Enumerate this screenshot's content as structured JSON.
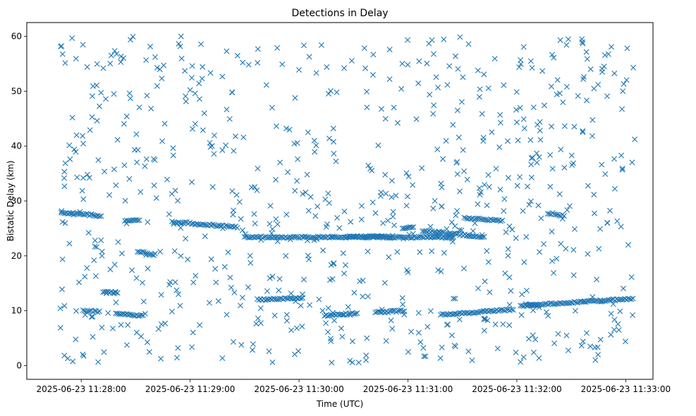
{
  "chart_data": {
    "type": "scatter",
    "title": "Detections in Delay",
    "xlabel": "Time (UTC)",
    "ylabel": "Bistatic Delay (km)",
    "marker": "x",
    "color": "#1f77b4",
    "xlim_seconds_from_11_28_00": [
      -30,
      315
    ],
    "ylim": [
      -2.5,
      62.5
    ],
    "x_ticks": [
      {
        "seconds": 0,
        "label": "2025-06-23 11:28:00"
      },
      {
        "seconds": 60,
        "label": "2025-06-23 11:29:00"
      },
      {
        "seconds": 120,
        "label": "2025-06-23 11:30:00"
      },
      {
        "seconds": 180,
        "label": "2025-06-23 11:31:00"
      },
      {
        "seconds": 240,
        "label": "2025-06-23 11:32:00"
      },
      {
        "seconds": 300,
        "label": "2025-06-23 11:33:00"
      }
    ],
    "y_ticks": [
      0,
      10,
      20,
      30,
      40,
      50,
      60
    ],
    "tracks": [
      {
        "t_start": -11,
        "t_end": 11,
        "y_start": 27.9,
        "y_end": 27.3
      },
      {
        "t_start": 50,
        "t_end": 86,
        "y_start": 26.2,
        "y_end": 25.2
      },
      {
        "t_start": 146,
        "t_end": 170,
        "y_start": 23.5,
        "y_end": 23.5
      },
      {
        "t_start": 90,
        "t_end": 170,
        "y_start": 23.4,
        "y_end": 23.4
      },
      {
        "t_start": 170,
        "t_end": 205,
        "y_start": 23.4,
        "y_end": 23.4
      },
      {
        "t_start": 177,
        "t_end": 183,
        "y_start": 25.1,
        "y_end": 25.1
      },
      {
        "t_start": 188,
        "t_end": 222,
        "y_start": 24.6,
        "y_end": 23.4
      },
      {
        "t_start": 211,
        "t_end": 232,
        "y_start": 26.9,
        "y_end": 26.4
      },
      {
        "t_start": 134,
        "t_end": 152,
        "y_start": 9.1,
        "y_end": 9.6
      },
      {
        "t_start": 162,
        "t_end": 178,
        "y_start": 9.7,
        "y_end": 10.0
      },
      {
        "t_start": 198,
        "t_end": 238,
        "y_start": 9.3,
        "y_end": 10.2
      },
      {
        "t_start": 242,
        "t_end": 304,
        "y_start": 10.9,
        "y_end": 12.2
      },
      {
        "t_start": 97,
        "t_end": 122,
        "y_start": 12.0,
        "y_end": 12.3
      },
      {
        "t_start": 24,
        "t_end": 32,
        "y_start": 26.5,
        "y_end": 26.5
      },
      {
        "t_start": 31,
        "t_end": 40,
        "y_start": 20.8,
        "y_end": 20.2
      },
      {
        "t_start": 1,
        "t_end": 10,
        "y_start": 10.0,
        "y_end": 9.8
      },
      {
        "t_start": 12,
        "t_end": 20,
        "y_start": 13.5,
        "y_end": 13.2
      },
      {
        "t_start": 19,
        "t_end": 34,
        "y_start": 9.5,
        "y_end": 9.1
      },
      {
        "t_start": 257,
        "t_end": 266,
        "y_start": 27.8,
        "y_end": 27.3
      },
      {
        "t_start": 245,
        "t_end": 252,
        "y_start": 11.1,
        "y_end": 11.1
      }
    ],
    "noise_points": 760,
    "noise_seed": 20250623
  }
}
